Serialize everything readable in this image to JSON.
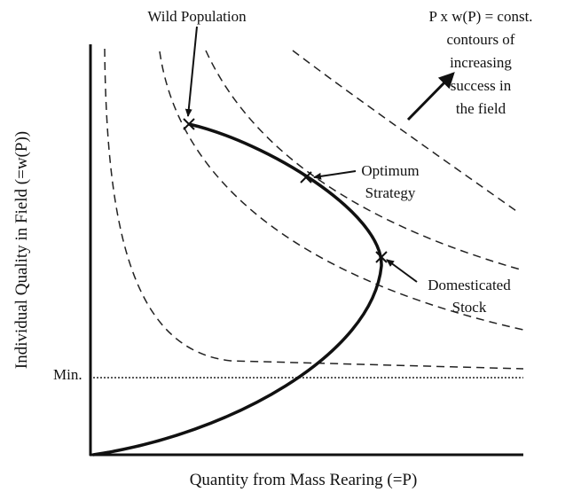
{
  "title_label": "Wild Population",
  "contour_note": [
    "P x w(P) = const.",
    "contours of",
    "increasing",
    "success in",
    "the field"
  ],
  "optimum": [
    "Optimum",
    "Strategy"
  ],
  "domesticated": [
    "Domesticated",
    "Stock"
  ],
  "min_label": "Min.",
  "y_axis_label": "Individual Quality in Field (=w(P))",
  "x_axis_label": "Quantity from Mass Rearing (=P)"
}
